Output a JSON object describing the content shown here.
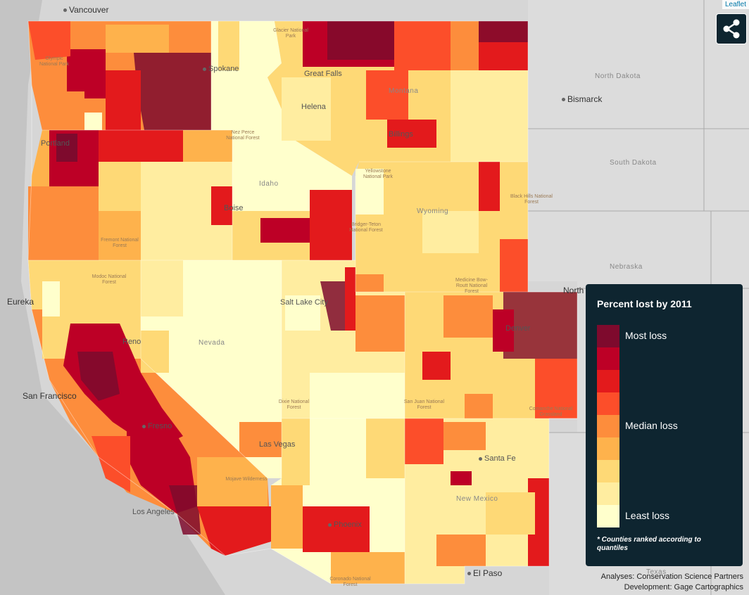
{
  "attribution": "Leaflet",
  "share_icon": "share-icon",
  "colors": {
    "background": "#d4d4d4",
    "water": "#bdbdbd",
    "panel": "#0e2530",
    "scale": [
      "#7e0a2d",
      "#bd0026",
      "#e31a1c",
      "#fc4e2a",
      "#fd8d3c",
      "#feb24c",
      "#fed976",
      "#ffeda0",
      "#ffffcc"
    ]
  },
  "cities": [
    {
      "name": "Vancouver",
      "big": true
    },
    {
      "name": "Spokane",
      "big": false
    },
    {
      "name": "Great Falls",
      "big": false
    },
    {
      "name": "Helena",
      "big": false
    },
    {
      "name": "Billings",
      "big": false
    },
    {
      "name": "Bismarck",
      "big": true
    },
    {
      "name": "Portland",
      "big": false
    },
    {
      "name": "Boise",
      "big": false
    },
    {
      "name": "Eureka",
      "big": true
    },
    {
      "name": "Salt Lake City",
      "big": false
    },
    {
      "name": "Reno",
      "big": false
    },
    {
      "name": "Denver",
      "big": false
    },
    {
      "name": "San Francisco",
      "big": true
    },
    {
      "name": "Fresno",
      "big": false
    },
    {
      "name": "Las Vegas",
      "big": false
    },
    {
      "name": "Santa Fe",
      "big": false
    },
    {
      "name": "Los Angeles",
      "big": false
    },
    {
      "name": "Phoenix",
      "big": false
    },
    {
      "name": "El Paso",
      "big": true
    },
    {
      "name": "North",
      "big": true
    }
  ],
  "states": [
    {
      "name": "North Dakota"
    },
    {
      "name": "South Dakota"
    },
    {
      "name": "Nebraska"
    },
    {
      "name": "Idaho"
    },
    {
      "name": "Wyoming"
    },
    {
      "name": "Nevada"
    },
    {
      "name": "Montana"
    },
    {
      "name": "New Mexico"
    },
    {
      "name": "Texas"
    }
  ],
  "forests": [
    {
      "name": "Glacier National Park"
    },
    {
      "name": "Olympic National Park"
    },
    {
      "name": "Nez Perce National Forest"
    },
    {
      "name": "Yellowstone National Park"
    },
    {
      "name": "Black Hills National Forest"
    },
    {
      "name": "Bridger-Teton National Forest"
    },
    {
      "name": "Fremont National Forest"
    },
    {
      "name": "Modoc National Forest"
    },
    {
      "name": "Medicine Bow-Routt National Forest"
    },
    {
      "name": "Comanche National Grassland"
    },
    {
      "name": "San Juan National Forest"
    },
    {
      "name": "Dixie National Forest"
    },
    {
      "name": "Mojave Wilderness"
    },
    {
      "name": "Coronado National Forest"
    }
  ],
  "legend": {
    "title": "Percent lost by 2011",
    "most": "Most loss",
    "median": "Median loss",
    "least": "Least loss",
    "note": "* Counties ranked according to quantiles"
  },
  "credits": {
    "line1": "Analyses: Conservation Science Partners",
    "line2": "Development: Gage Cartographics"
  }
}
